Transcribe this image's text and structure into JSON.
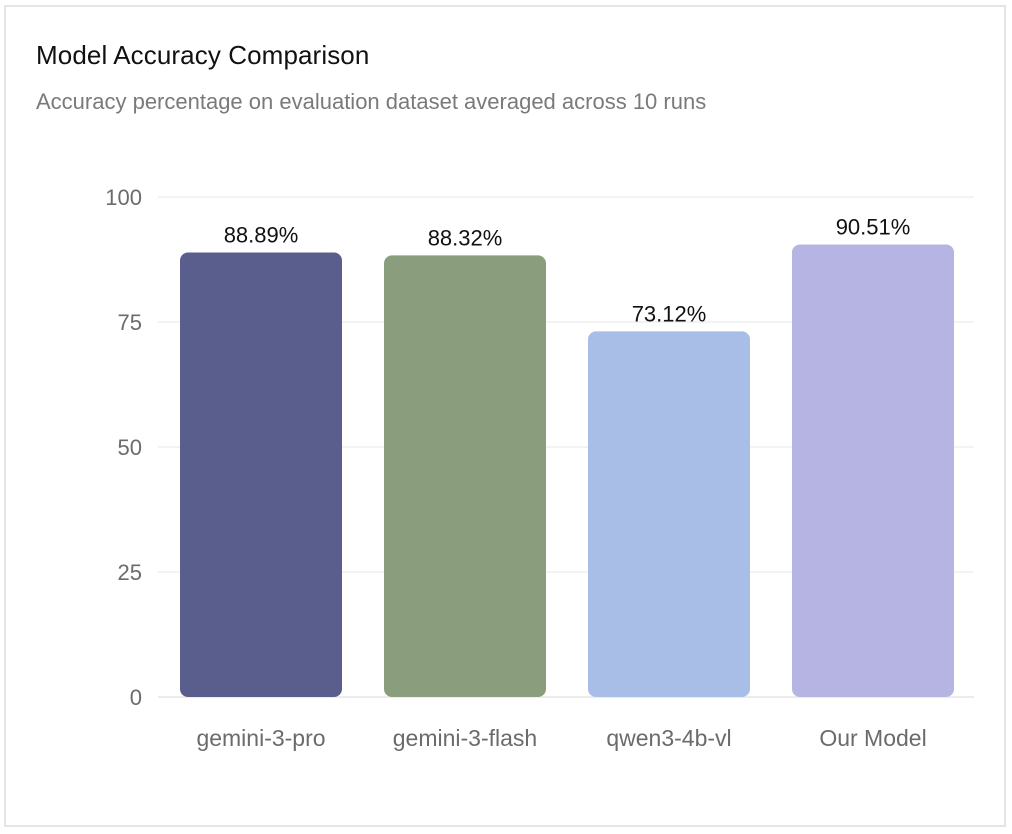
{
  "chart_data": {
    "type": "bar",
    "title": "Model Accuracy Comparison",
    "subtitle": "Accuracy percentage on evaluation dataset averaged across 10 runs",
    "categories": [
      "gemini-3-pro",
      "gemini-3-flash",
      "qwen3-4b-vl",
      "Our Model"
    ],
    "values": [
      88.89,
      88.32,
      73.12,
      90.51
    ],
    "data_labels": [
      "88.89%",
      "88.32%",
      "73.12%",
      "90.51%"
    ],
    "colors": [
      "#5a5e8c",
      "#8a9e7e",
      "#a9bee6",
      "#b6b4e2"
    ],
    "ylim": [
      0,
      100
    ],
    "yticks": [
      0,
      25,
      50,
      75,
      100
    ],
    "xlabel": "",
    "ylabel": "",
    "grid": true,
    "legend": "none"
  }
}
